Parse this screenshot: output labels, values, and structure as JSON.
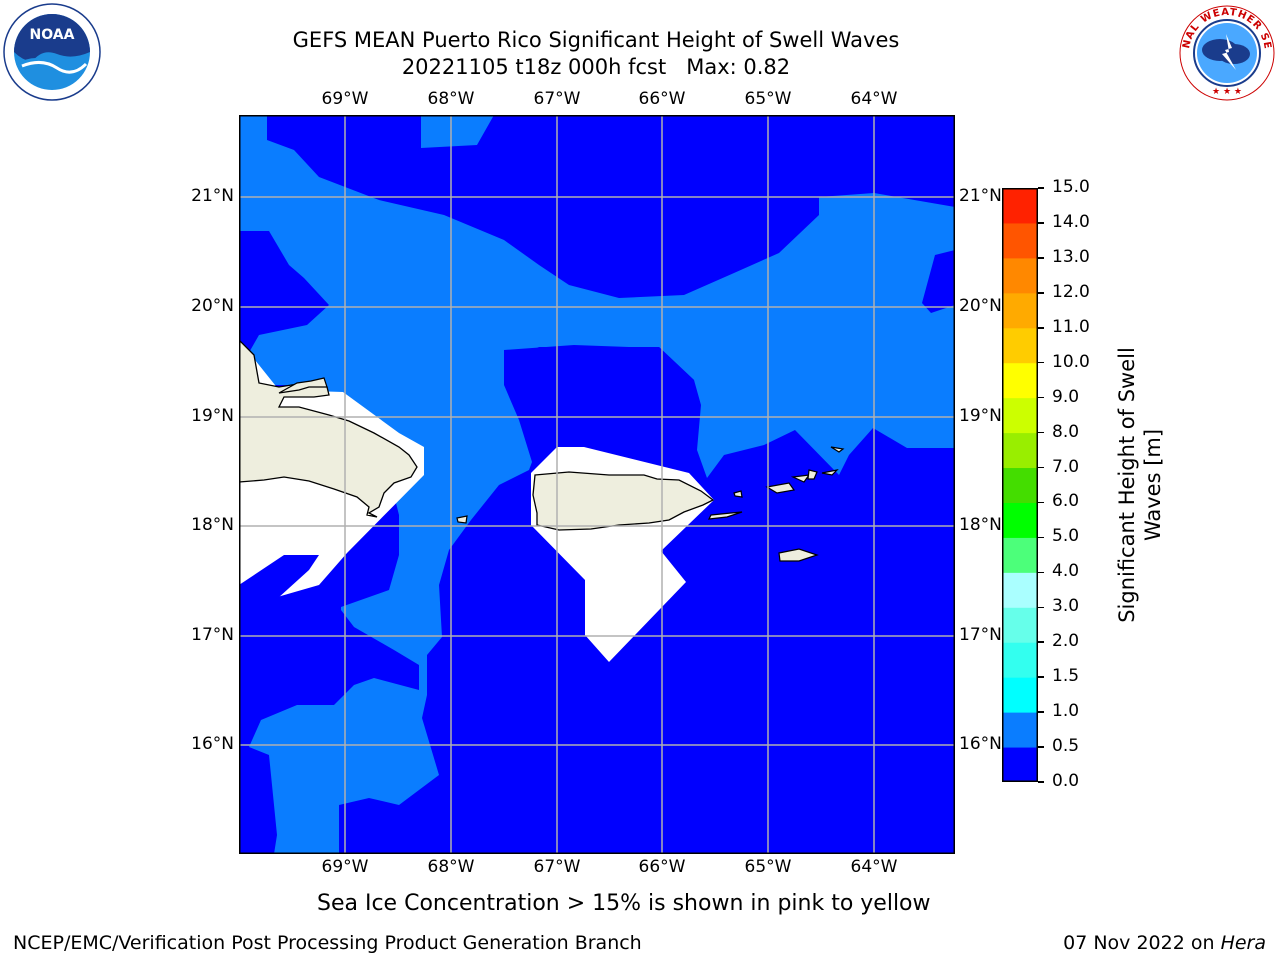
{
  "header": {
    "title_line1": "GEFS MEAN Puerto Rico Significant Height of Swell Waves",
    "title_line2": "20221105 t18z 000h fcst   Max: 0.82"
  },
  "logos": {
    "left": {
      "name": "noaa-logo",
      "text": "NOAA"
    },
    "right": {
      "name": "nws-logo",
      "text": "NATIONAL WEATHER SERVICE"
    }
  },
  "map": {
    "lon_labels": [
      "69°W",
      "68°W",
      "67°W",
      "66°W",
      "65°W",
      "64°W"
    ],
    "lat_labels": [
      "21°N",
      "20°N",
      "19°N",
      "18°N",
      "17°N",
      "16°N"
    ],
    "colors": {
      "band_0_0_5": "#0000ff",
      "band_0_5_1_0": "#0a7dff",
      "land": "#eeeede",
      "no_data": "#ffffff",
      "grid": "#b0b0b0"
    }
  },
  "colorbar": {
    "label_line1": "Significant Height of Swell",
    "label_line2": "Waves [m]",
    "ticks": [
      "0.0",
      "0.5",
      "1.0",
      "1.5",
      "2.0",
      "3.0",
      "4.0",
      "5.0",
      "6.0",
      "7.0",
      "8.0",
      "9.0",
      "10.0",
      "11.0",
      "12.0",
      "13.0",
      "14.0",
      "15.0"
    ],
    "colors": [
      "#0000ff",
      "#0a7dff",
      "#00ffff",
      "#33ffef",
      "#66ffea",
      "#aaffff",
      "#4cff7a",
      "#00ff00",
      "#44dd00",
      "#99ee00",
      "#ccff00",
      "#ffff00",
      "#ffcc00",
      "#ffaa00",
      "#ff8800",
      "#ff5500",
      "#ff2200",
      "#ff0000"
    ]
  },
  "note": "Sea Ice Concentration > 15% is shown in pink to yellow",
  "footer": {
    "left": "NCEP/EMC/Verification Post Processing Product Generation Branch",
    "date": "07 Nov 2022 on ",
    "host": "Hera"
  }
}
